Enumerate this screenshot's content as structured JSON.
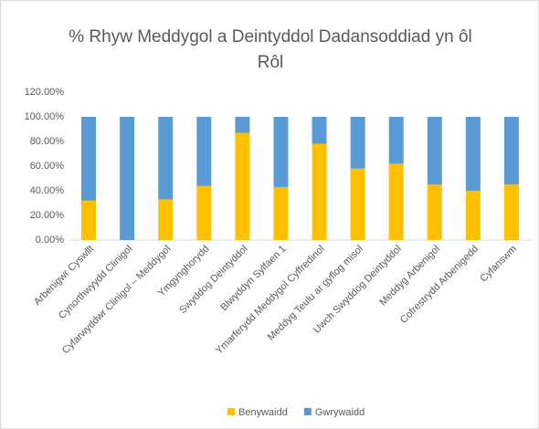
{
  "chart_data": {
    "type": "stacked_bar",
    "title": "% Rhyw Meddygol a Deintyddol Dadansoddiad yn ôl Rôl",
    "categories": [
      "Arbenigwr Cyswllt",
      "Cynorthwyydd Clinigol",
      "Cyfarwyddwr Clinigol – Meddygol",
      "Ymgynghorydd",
      "Swyddog Deintyddol",
      "Blwyddyn Sylfaen 1",
      "Ymarferydd Meddygol Cyffredinol",
      "Meddyg Teulu ar gyflog misol",
      "Uwch Swyddog Deintyddol",
      "Meddyg Arbenigol",
      "Cofrestrydd Arbenigedd",
      "Cyfanswm"
    ],
    "series": [
      {
        "name": "Benywaidd",
        "color": "#ffc000",
        "values": [
          32,
          0,
          33,
          44,
          87,
          43,
          78,
          58,
          62,
          45,
          40,
          45
        ]
      },
      {
        "name": "Gwrywaidd",
        "color": "#5b9bd5",
        "values": [
          68,
          100,
          67,
          56,
          13,
          57,
          22,
          42,
          38,
          55,
          60,
          55
        ]
      }
    ],
    "ylim": [
      0,
      120
    ],
    "yticks": [
      {
        "value": 0,
        "label": "0.00%"
      },
      {
        "value": 20,
        "label": "20.00%"
      },
      {
        "value": 40,
        "label": "40.00%"
      },
      {
        "value": 60,
        "label": "60.00%"
      },
      {
        "value": 80,
        "label": "80.00%"
      },
      {
        "value": 100,
        "label": "100.00%"
      },
      {
        "value": 120,
        "label": "120.00%"
      }
    ],
    "grid": false,
    "legend": "bottom"
  }
}
